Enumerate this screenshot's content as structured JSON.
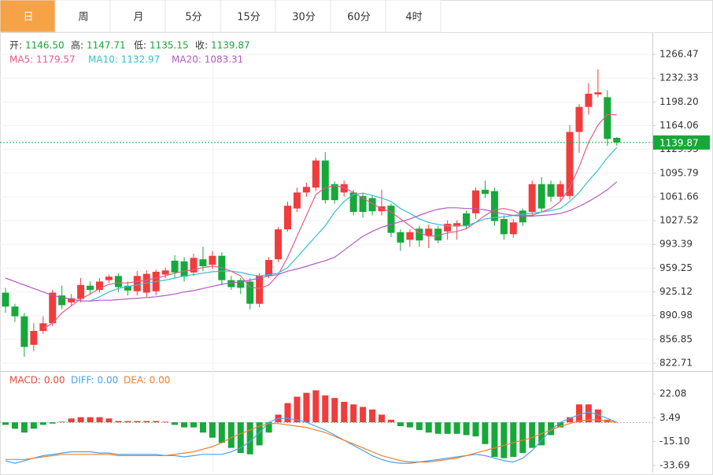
{
  "tabs": [
    "日",
    "周",
    "月",
    "5分",
    "15分",
    "30分",
    "60分",
    "4时"
  ],
  "active_tab": 0,
  "chart_data": [
    {
      "type": "candlestick",
      "info": [
        {
          "label": "开:",
          "value": "1146.50"
        },
        {
          "label": "高:",
          "value": "1147.71"
        },
        {
          "label": "低:",
          "value": "1135.15"
        },
        {
          "label": "收:",
          "value": "1139.87"
        }
      ],
      "info_color": "#17a83a",
      "open": [
        924,
        904,
        890,
        849,
        869,
        880,
        920,
        910,
        915,
        934,
        928,
        942,
        948,
        934,
        926,
        924,
        926,
        950,
        970,
        969,
        953,
        972,
        964,
        977,
        942,
        942,
        940,
        908,
        948,
        972,
        1015,
        1045,
        1068,
        1075,
        1114,
        1080,
        1068,
        1068,
        1063,
        1060,
        1041,
        1049,
        1011,
        1000,
        1016,
        1006,
        1016,
        1012,
        1019,
        1038,
        1038,
        1072,
        1070,
        1030,
        1008,
        1042,
        1040,
        1080,
        1080,
        1062,
        1063,
        1155,
        1191,
        1209,
        1205,
        1146.5
      ],
      "high": [
        931,
        908,
        895,
        880,
        890,
        928,
        934,
        922,
        945,
        940,
        945,
        950,
        952,
        940,
        955,
        956,
        957,
        960,
        978,
        975,
        980,
        990,
        984,
        982,
        948,
        945,
        945,
        952,
        975,
        1018,
        1055,
        1075,
        1082,
        1118,
        1126,
        1084,
        1085,
        1072,
        1068,
        1064,
        1072,
        1052,
        1015,
        1015,
        1020,
        1022,
        1020,
        1028,
        1028,
        1042,
        1075,
        1085,
        1075,
        1035,
        1030,
        1045,
        1085,
        1090,
        1085,
        1085,
        1165,
        1195,
        1225,
        1245,
        1215,
        1147.71
      ],
      "low": [
        895,
        882,
        832,
        840,
        865,
        876,
        900,
        905,
        910,
        922,
        924,
        938,
        925,
        920,
        920,
        918,
        920,
        945,
        945,
        940,
        948,
        955,
        958,
        935,
        928,
        922,
        900,
        903,
        945,
        968,
        1012,
        1040,
        1062,
        1070,
        1052,
        1052,
        1062,
        1035,
        1032,
        1035,
        1035,
        1004,
        984,
        990,
        990,
        988,
        995,
        1000,
        1000,
        1015,
        1030,
        1060,
        1020,
        1000,
        1003,
        1020,
        1035,
        1040,
        1055,
        1055,
        1058,
        1125,
        1180,
        1205,
        1135,
        1135.15
      ],
      "close": [
        904,
        890,
        846,
        869,
        880,
        924,
        906,
        916,
        935,
        928,
        940,
        947,
        932,
        927,
        948,
        951,
        954,
        956,
        953,
        947,
        974,
        962,
        977,
        942,
        932,
        931,
        908,
        948,
        971,
        1015,
        1049,
        1068,
        1076,
        1114,
        1057,
        1057,
        1080,
        1040,
        1040,
        1041,
        1048,
        1010,
        996,
        1011,
        999,
        1016,
        999,
        1023,
        1024,
        1020,
        1071,
        1066,
        1027,
        1008,
        1025,
        1025,
        1080,
        1045,
        1062,
        1080,
        1155,
        1191,
        1210,
        1212,
        1145,
        1139.87
      ],
      "up_color": "#f03c3c",
      "down_color": "#17a83a",
      "series": [
        {
          "legend": "MA5: 1179.57",
          "color": "#e9588a",
          "values": [
            null,
            null,
            null,
            null,
            872,
            880,
            895,
            905,
            915,
            922,
            930,
            936,
            938,
            938,
            940,
            942,
            945,
            948,
            952,
            955,
            957,
            960,
            962,
            960,
            955,
            948,
            932,
            930,
            935,
            950,
            975,
            1005,
            1035,
            1065,
            1075,
            1078,
            1075,
            1068,
            1060,
            1052,
            1045,
            1040,
            1030,
            1020,
            1010,
            1005,
            1006,
            1010,
            1012,
            1016,
            1025,
            1035,
            1043,
            1045,
            1042,
            1035,
            1035,
            1040,
            1045,
            1055,
            1075,
            1105,
            1140,
            1165,
            1180,
            1179.57
          ]
        },
        {
          "legend": "MA10: 1132.97",
          "color": "#35bfd0",
          "values": [
            null,
            null,
            null,
            null,
            null,
            null,
            null,
            null,
            null,
            912,
            918,
            925,
            930,
            933,
            935,
            938,
            940,
            942,
            945,
            948,
            950,
            952,
            954,
            955,
            955,
            953,
            950,
            948,
            950,
            952,
            960,
            975,
            990,
            1005,
            1020,
            1040,
            1055,
            1065,
            1067,
            1064,
            1060,
            1055,
            1045,
            1038,
            1030,
            1025,
            1022,
            1020,
            1020,
            1020,
            1025,
            1030,
            1032,
            1033,
            1035,
            1037,
            1038,
            1040,
            1042,
            1045,
            1055,
            1068,
            1085,
            1100,
            1118,
            1132.97
          ]
        },
        {
          "legend": "MA20: 1083.31",
          "color": "#b05cc0",
          "values": [
            945,
            940,
            935,
            930,
            925,
            920,
            917,
            915,
            912,
            912,
            913,
            913,
            914,
            915,
            916,
            917,
            918,
            920,
            922,
            925,
            927,
            930,
            933,
            936,
            938,
            940,
            942,
            945,
            948,
            950,
            955,
            958,
            962,
            966,
            970,
            975,
            985,
            995,
            1005,
            1012,
            1018,
            1022,
            1026,
            1030,
            1035,
            1040,
            1044,
            1046,
            1046,
            1045,
            1045,
            1043,
            1040,
            1037,
            1035,
            1034,
            1034,
            1035,
            1036,
            1038,
            1042,
            1048,
            1055,
            1063,
            1072,
            1083.31
          ]
        }
      ],
      "ylim": [
        812.5,
        1296
      ],
      "yticks": [
        1266.47,
        1232.33,
        {
          "value": 1198.2,
          "label": "1198.20"
        },
        1164.06,
        1129.93,
        1095.79,
        1061.66,
        1027.52,
        993.39,
        959.25,
        925.12,
        890.98,
        856.85,
        822.71
      ],
      "last_price": 1139.87,
      "last_price_color": "#17a83a",
      "grid": true
    },
    {
      "type": "macd",
      "bars": {
        "legend": "MACD: 0.00",
        "color": "#e84b3c",
        "up_color": "#f03c3c",
        "down_color": "#17a83a",
        "values": [
          -2,
          -5,
          -8,
          -5,
          -2,
          -1,
          0.5,
          3,
          4,
          4,
          4,
          3,
          1,
          1,
          1,
          1,
          1,
          0.5,
          -2,
          -4,
          -4,
          -8,
          -12,
          -16,
          -20,
          -24,
          -25,
          -18,
          -8,
          6,
          15,
          20,
          23,
          25,
          21,
          19,
          16,
          14,
          12,
          10,
          6,
          2,
          -3,
          -4,
          -6,
          -8,
          -9,
          -9,
          -9,
          -10,
          -11,
          -17,
          -27,
          -28,
          -27,
          -24,
          -20,
          -18,
          -10,
          -4,
          4,
          14,
          14,
          10,
          2,
          0
        ]
      },
      "series": [
        {
          "legend": "DIFF: 0.00",
          "color": "#4aa3e8",
          "values": [
            -30,
            -32,
            -30,
            -28,
            -26,
            -25,
            -24,
            -23,
            -23,
            -23,
            -24,
            -24,
            -25,
            -25,
            -25,
            -25,
            -25,
            -26,
            -26,
            -27,
            -26,
            -25,
            -25,
            -25,
            -23,
            -20,
            -15,
            -8,
            0,
            3,
            3,
            2,
            0,
            -3,
            -6,
            -10,
            -14,
            -18,
            -22,
            -26,
            -29,
            -31,
            -32,
            -32,
            -31,
            -30,
            -29,
            -28,
            -27,
            -26,
            -25,
            -26,
            -28,
            -30,
            -31,
            -28,
            -22,
            -14,
            -6,
            0,
            3,
            6,
            8,
            6,
            3,
            0
          ]
        },
        {
          "legend": "DEA: 0.00",
          "color": "#f08030",
          "values": [
            -29,
            -29,
            -29,
            -28,
            -27,
            -26,
            -25,
            -25,
            -25,
            -25,
            -25,
            -25,
            -26,
            -26,
            -26,
            -26,
            -26,
            -26,
            -25,
            -24,
            -23,
            -21,
            -19,
            -16,
            -12,
            -9,
            -6,
            -3,
            -1,
            -1,
            -2,
            -3,
            -4,
            -6,
            -8,
            -11,
            -14,
            -17,
            -20,
            -23,
            -26,
            -28,
            -30,
            -31,
            -31,
            -31,
            -30,
            -29,
            -28,
            -26,
            -24,
            -22,
            -20,
            -18,
            -16,
            -14,
            -12,
            -9,
            -6,
            -3,
            -1,
            1,
            2,
            2,
            1,
            0
          ]
        }
      ],
      "ylim": [
        -39.3,
        38.2
      ],
      "yticks": [
        22.08,
        3.49,
        {
          "value": -15.1,
          "label": "-15.10"
        },
        -33.69
      ]
    }
  ]
}
